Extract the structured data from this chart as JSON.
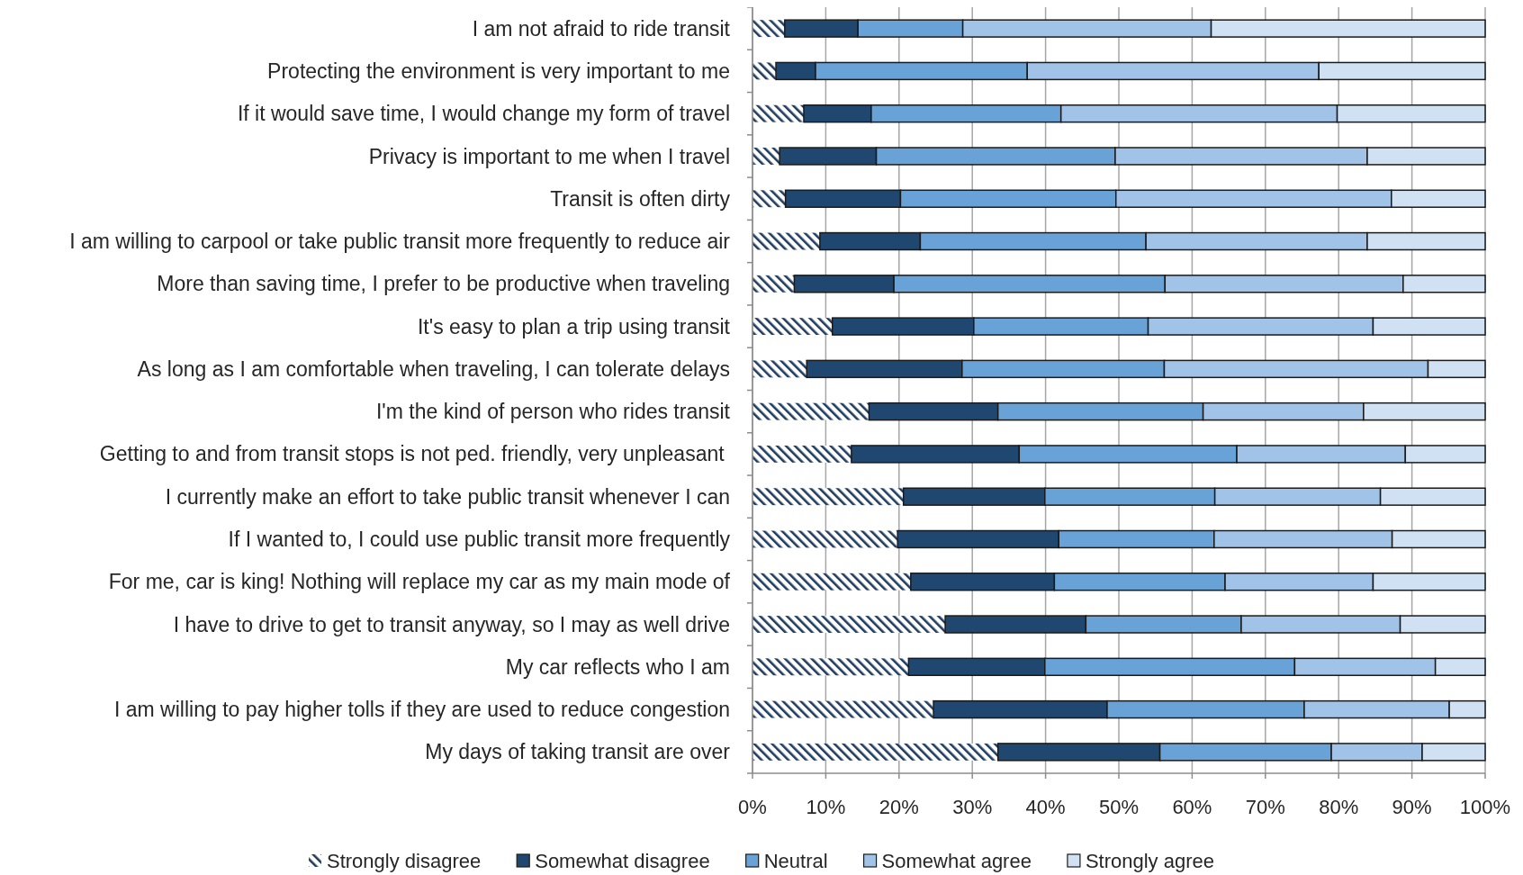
{
  "chart_data": {
    "type": "bar",
    "orientation": "horizontal",
    "stacked": true,
    "categories": [
      "I am not afraid to ride transit",
      "Protecting the environment is very important to me",
      "If it would save time, I would change my form of travel",
      "Privacy is important to me when I travel",
      "Transit is often dirty",
      "I am willing to carpool or take public transit more frequently to reduce air",
      "More than saving time, I prefer to be productive when traveling",
      "It's easy to plan a trip using transit",
      "As long as I am comfortable when traveling, I can tolerate delays",
      "I'm the kind of person who rides transit",
      "Getting to and from transit stops is not ped. friendly, very unpleasant ",
      "I currently make an effort to take public transit whenever I can",
      "If I wanted to, I could use public transit more frequently",
      "For me, car is king! Nothing will replace my car as my main mode of",
      "I have to drive to get to transit anyway, so I may as well drive",
      "My car reflects who I am",
      "I am willing to pay higher tolls if they are used to reduce congestion",
      "My days of taking transit are over"
    ],
    "series": [
      {
        "name": "Strongly disagree",
        "color": "#1f3b5e",
        "values": [
          4.4,
          3.2,
          7.0,
          3.7,
          4.5,
          9.2,
          5.7,
          10.9,
          7.4,
          15.9,
          13.5,
          20.6,
          19.8,
          21.6,
          26.3,
          21.3,
          24.7,
          33.5
        ]
      },
      {
        "name": "Somewhat disagree",
        "color": "#1f4770",
        "values": [
          10.0,
          5.4,
          9.2,
          13.2,
          15.7,
          13.7,
          13.6,
          19.3,
          21.2,
          17.6,
          22.9,
          19.3,
          22.0,
          19.6,
          19.2,
          18.6,
          23.7,
          22.1
        ]
      },
      {
        "name": "Neutral",
        "color": "#68a2d6",
        "values": [
          14.3,
          28.9,
          25.9,
          32.6,
          29.4,
          30.8,
          37.0,
          23.8,
          27.6,
          28.0,
          29.7,
          23.2,
          21.2,
          23.3,
          21.2,
          34.1,
          26.9,
          23.4
        ]
      },
      {
        "name": "Somewhat agree",
        "color": "#a1c3e8",
        "values": [
          33.9,
          39.8,
          37.7,
          34.4,
          37.6,
          30.2,
          32.5,
          30.7,
          36.0,
          21.9,
          23.0,
          22.6,
          24.3,
          20.2,
          21.7,
          19.2,
          19.8,
          12.4
        ]
      },
      {
        "name": "Strongly agree",
        "color": "#d0e1f3",
        "values": [
          37.4,
          22.7,
          20.2,
          16.1,
          12.8,
          16.1,
          11.2,
          15.3,
          7.8,
          16.6,
          10.9,
          14.3,
          12.7,
          15.3,
          11.6,
          6.8,
          4.9,
          8.6
        ]
      }
    ],
    "xlim": [
      0,
      100
    ],
    "xticks": [
      {
        "value": 0,
        "label": "0%"
      },
      {
        "value": 10,
        "label": "10%"
      },
      {
        "value": 20,
        "label": "20%"
      },
      {
        "value": 30,
        "label": "30%"
      },
      {
        "value": 40,
        "label": "40%"
      },
      {
        "value": 50,
        "label": "50%"
      },
      {
        "value": 60,
        "label": "60%"
      },
      {
        "value": 70,
        "label": "70%"
      },
      {
        "value": 80,
        "label": "80%"
      },
      {
        "value": 90,
        "label": "90%"
      },
      {
        "value": 100,
        "label": "100%"
      }
    ],
    "grid": "x",
    "legend": "bottom"
  }
}
